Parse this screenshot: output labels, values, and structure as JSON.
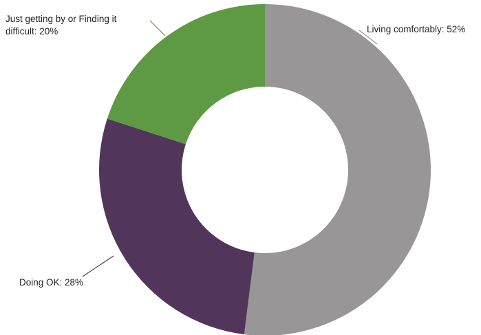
{
  "chart_data": {
    "type": "pie",
    "variant": "donut",
    "categories": [
      "Living comfortably",
      "Doing OK",
      "Just getting by or Finding it difficult"
    ],
    "values": [
      52,
      28,
      20
    ],
    "unit": "%",
    "colors": [
      "#989697",
      "#52355b",
      "#5e9a43"
    ],
    "labels": [
      {
        "lines": [
          "Living comfortably: 52%"
        ]
      },
      {
        "lines": [
          "Doing OK: 28%"
        ]
      },
      {
        "lines": [
          "Just getting by or Finding it",
          "difficult: 20%"
        ]
      }
    ],
    "title": "",
    "legend": "none"
  }
}
